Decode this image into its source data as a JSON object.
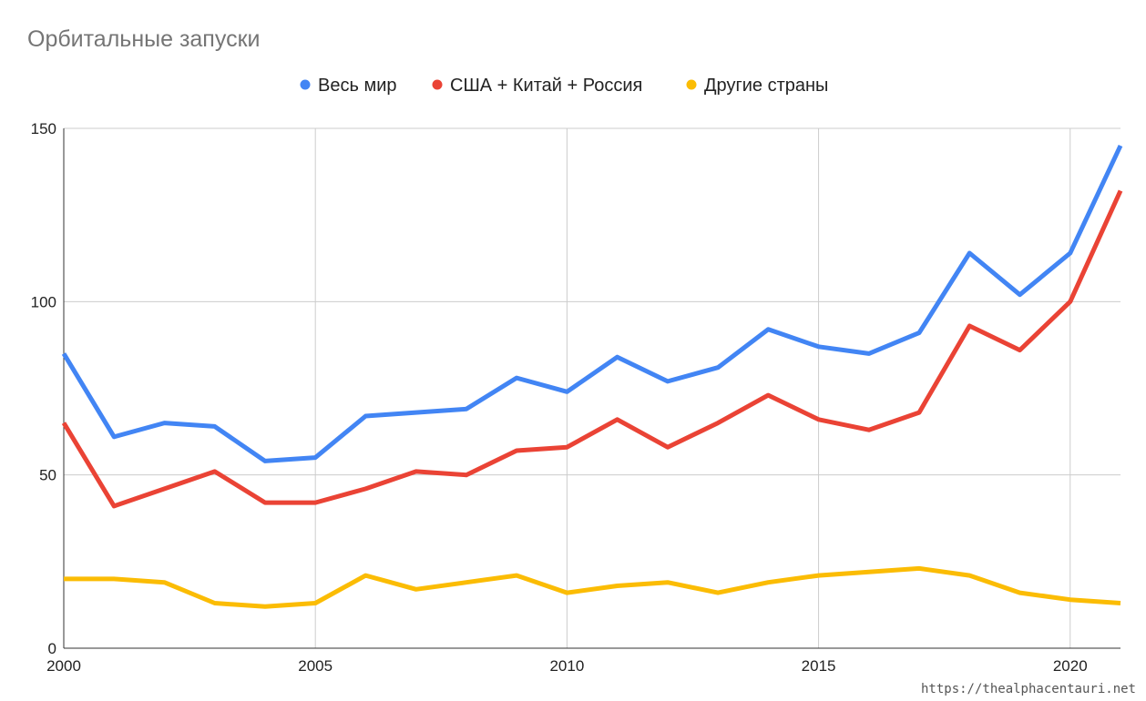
{
  "chart_data": {
    "type": "line",
    "title": "Орбитальные запуски",
    "xlabel": "",
    "ylabel": "",
    "x": [
      2000,
      2001,
      2002,
      2003,
      2004,
      2005,
      2006,
      2007,
      2008,
      2009,
      2010,
      2011,
      2012,
      2013,
      2014,
      2015,
      2016,
      2017,
      2018,
      2019,
      2020,
      2021
    ],
    "series": [
      {
        "name": "Весь мир",
        "color": "#4285f4",
        "values": [
          85,
          61,
          65,
          64,
          54,
          55,
          67,
          68,
          69,
          78,
          74,
          84,
          77,
          81,
          92,
          87,
          85,
          91,
          114,
          102,
          114,
          145
        ]
      },
      {
        "name": "США + Китай + Россия",
        "color": "#ea4335",
        "values": [
          65,
          41,
          46,
          51,
          42,
          42,
          46,
          51,
          50,
          57,
          58,
          66,
          58,
          65,
          73,
          66,
          63,
          68,
          93,
          86,
          100,
          132
        ]
      },
      {
        "name": "Другие страны",
        "color": "#fbbc04",
        "values": [
          20,
          20,
          19,
          13,
          12,
          13,
          21,
          17,
          19,
          21,
          16,
          18,
          19,
          16,
          19,
          21,
          22,
          23,
          21,
          16,
          14,
          13
        ]
      }
    ],
    "xlim": [
      2000,
      2021
    ],
    "ylim": [
      0,
      150
    ],
    "x_ticks": [
      "2000",
      "2005",
      "2010",
      "2015",
      "2020"
    ],
    "y_ticks": [
      "0",
      "50",
      "100",
      "150"
    ],
    "grid": true,
    "legend_position": "top-center"
  },
  "watermark": "https://thealphacentauri.net"
}
